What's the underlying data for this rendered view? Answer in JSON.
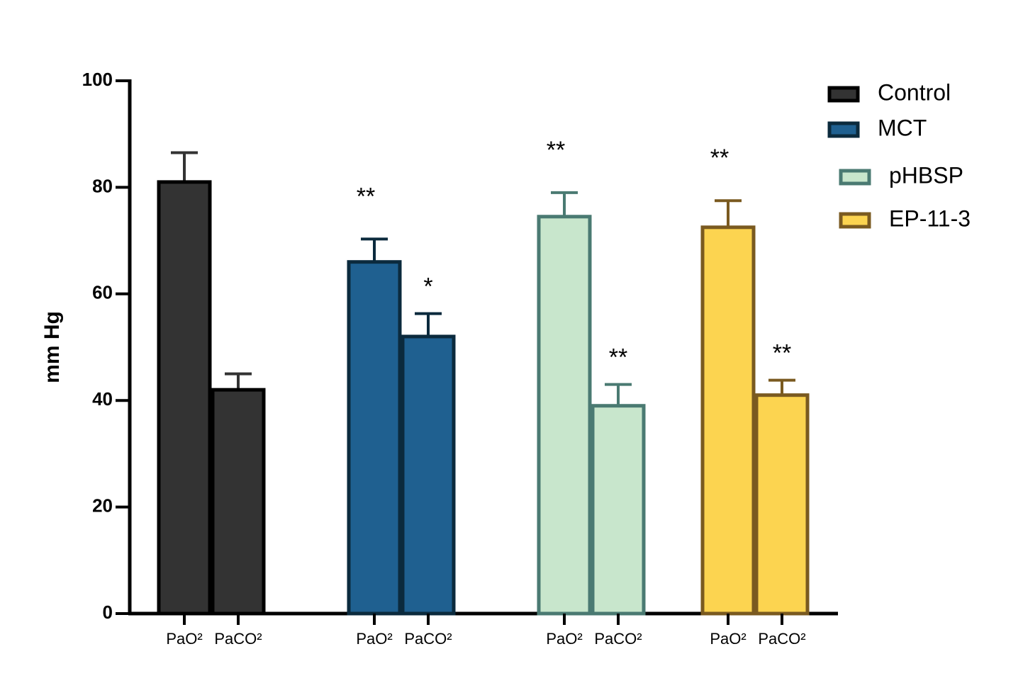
{
  "chart_data": {
    "type": "bar",
    "y_label": "mm Hg",
    "categories": [
      "PaO²",
      "PaCO²"
    ],
    "series": [
      {
        "name": "Control",
        "color": "#333333",
        "edge": "#000000",
        "values": [
          81,
          42
        ],
        "errors": [
          5.5,
          3
        ],
        "annotations": [
          null,
          null
        ]
      },
      {
        "name": "MCT",
        "color": "#1f6090",
        "edge": "#0b2a3d",
        "values": [
          66,
          52
        ],
        "errors": [
          4.3,
          4.3
        ],
        "annotations": [
          "**",
          "*"
        ]
      },
      {
        "name": "pHBSP",
        "color": "#c8e6cc",
        "edge": "#4a7a72",
        "values": [
          74.5,
          39
        ],
        "errors": [
          4.5,
          4
        ],
        "annotations": [
          "**",
          "**"
        ]
      },
      {
        "name": "EP-11-3",
        "color": "#fcd450",
        "edge": "#7a5a20",
        "values": [
          72.5,
          41
        ],
        "errors": [
          5,
          2.8
        ],
        "annotations": [
          "**",
          "**"
        ]
      }
    ],
    "ylim": [
      0,
      100
    ],
    "yticks": [
      0,
      20,
      40,
      60,
      80,
      100
    ],
    "legend": "upper right"
  }
}
